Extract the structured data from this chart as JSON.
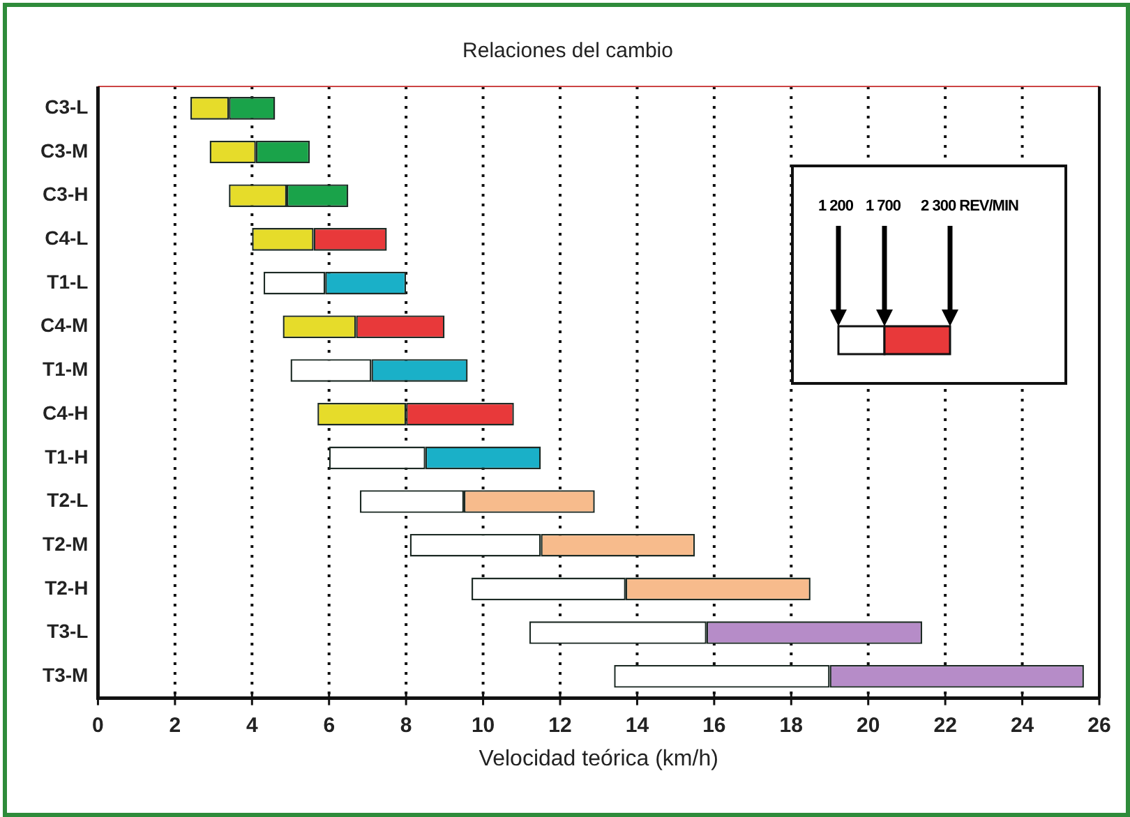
{
  "chart_data": {
    "type": "bar",
    "orientation": "horizontal",
    "title": "Relaciones del cambio",
    "xlabel": "Velocidad teórica (km/h)",
    "categories": [
      "C3-L",
      "C3-M",
      "C3-H",
      "C4-L",
      "T1-L",
      "C4-M",
      "T1-M",
      "C4-H",
      "T1-H",
      "T2-L",
      "T2-M",
      "T2-H",
      "T3-L",
      "T3-M"
    ],
    "series": [
      {
        "base": [
          2.4,
          2.9,
          3.4,
          4.0,
          4.3,
          4.8,
          5.0,
          5.7,
          6.0,
          6.8,
          8.1,
          9.7,
          11.2,
          13.4
        ],
        "colors": [
          "#e6dc2a",
          "#e6dc2a",
          "#e6dc2a",
          "#e6dc2a",
          "#ffffff",
          "#e6dc2a",
          "#ffffff",
          "#e6dc2a",
          "#ffffff",
          "#ffffff",
          "#ffffff",
          "#ffffff",
          "#ffffff",
          "#ffffff"
        ],
        "values": [
          1.0,
          1.2,
          1.5,
          1.6,
          1.6,
          1.9,
          2.1,
          2.3,
          2.5,
          2.7,
          3.4,
          4.0,
          4.6,
          5.6
        ]
      },
      {
        "base": [
          3.4,
          4.1,
          4.9,
          5.6,
          5.9,
          6.7,
          7.1,
          8.0,
          8.5,
          9.5,
          11.5,
          13.7,
          15.8,
          19.0
        ],
        "colors": [
          "#1aa34a",
          "#1aa34a",
          "#1aa34a",
          "#e8393a",
          "#1ab0c8",
          "#e8393a",
          "#1ab0c8",
          "#e8393a",
          "#1ab0c8",
          "#f7bb8c",
          "#f7bb8c",
          "#f7bb8c",
          "#b68cc8",
          "#b68cc8"
        ],
        "values": [
          1.2,
          1.4,
          1.6,
          1.9,
          2.1,
          2.3,
          2.5,
          2.8,
          3.0,
          3.4,
          4.0,
          4.8,
          5.6,
          6.6
        ]
      }
    ],
    "xlim": [
      0,
      26
    ],
    "xticks": [
      0,
      2,
      4,
      6,
      8,
      10,
      12,
      14,
      16,
      18,
      20,
      22,
      24,
      26
    ],
    "grid": "x",
    "annotations": [
      "1 200",
      "1 700",
      "2 300 REV/MIN"
    ]
  }
}
